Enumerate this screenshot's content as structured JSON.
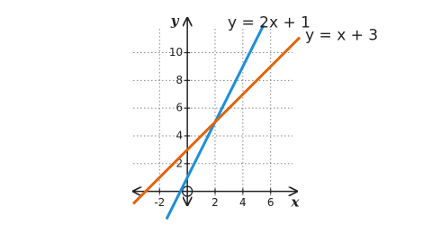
{
  "chart_data": {
    "type": "line",
    "xlabel": "x",
    "ylabel": "y",
    "xlim": [
      -3.9,
      7.9
    ],
    "ylim": [
      -1,
      12.5
    ],
    "xticks": [
      -2,
      2,
      4,
      6
    ],
    "yticks": [
      2,
      4,
      6,
      8,
      10
    ],
    "grid": true,
    "series": [
      {
        "name": "y = 2x + 1",
        "color": "#1a8fdd",
        "x": [
          -1.5,
          5.5
        ],
        "values": [
          -2,
          12
        ]
      },
      {
        "name": "y = x + 3",
        "color": "#e0640e",
        "x": [
          -3.9,
          8.1
        ],
        "values": [
          -0.9,
          11.1
        ]
      }
    ]
  }
}
